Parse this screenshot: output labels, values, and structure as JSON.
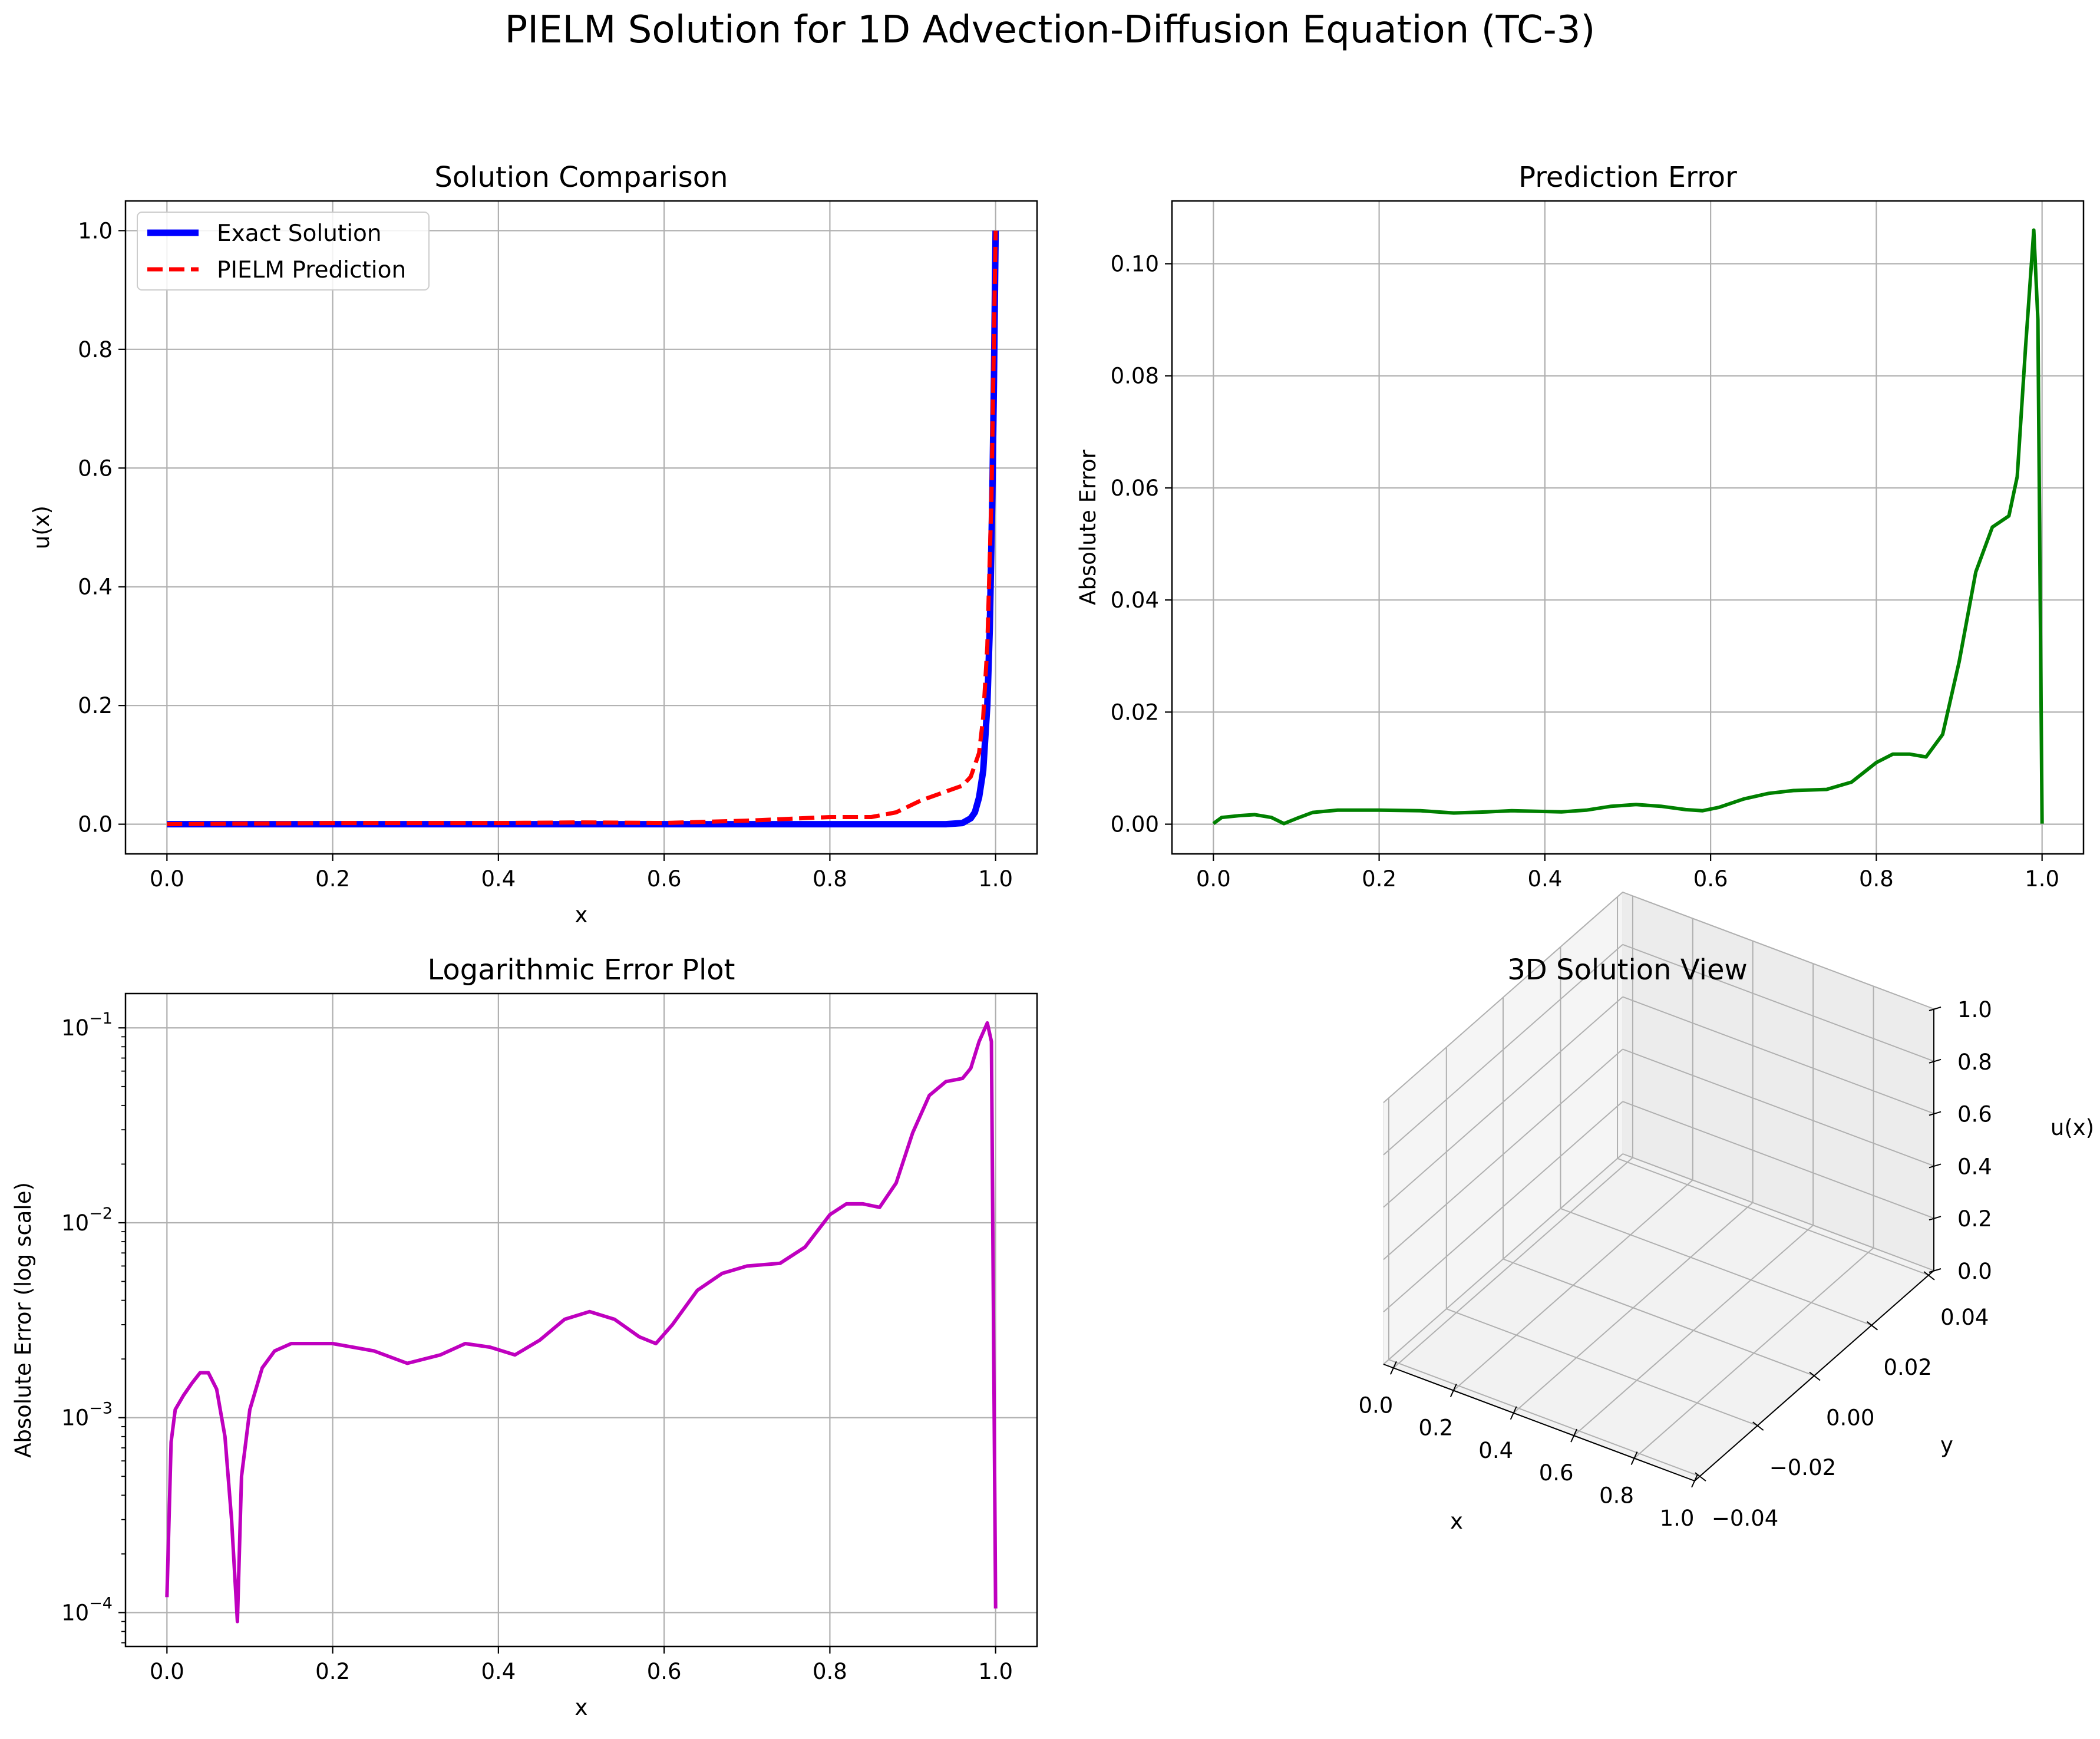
{
  "figure": {
    "suptitle": "PIELM Solution for 1D Advection-Diffusion Equation (TC-3)"
  },
  "chart_data": [
    {
      "type": "line",
      "title": "Solution Comparison",
      "xlabel": "x",
      "ylabel": "u(x)",
      "xlim": [
        -0.05,
        1.05
      ],
      "ylim": [
        -0.05,
        1.05
      ],
      "xticks": [
        0.0,
        0.2,
        0.4,
        0.6,
        0.8,
        1.0
      ],
      "yticks": [
        0.0,
        0.2,
        0.4,
        0.6,
        0.8,
        1.0
      ],
      "xtick_labels": [
        "0.0",
        "0.2",
        "0.4",
        "0.6",
        "0.8",
        "1.0"
      ],
      "ytick_labels": [
        "0.0",
        "0.2",
        "0.4",
        "0.6",
        "0.8",
        "1.0"
      ],
      "grid": true,
      "legend_position": "top-left",
      "series": [
        {
          "name": "Exact Solution",
          "color": "#0000ff",
          "style": "solid",
          "x": [
            0.0,
            0.1,
            0.2,
            0.3,
            0.4,
            0.5,
            0.6,
            0.7,
            0.8,
            0.9,
            0.94,
            0.96,
            0.97,
            0.975,
            0.98,
            0.985,
            0.99,
            0.993,
            0.996,
            0.998,
            1.0
          ],
          "y": [
            0.0,
            0.0,
            0.0,
            0.0,
            0.0,
            0.0,
            0.0,
            0.0,
            0.0,
            0.0,
            0.0,
            0.002,
            0.01,
            0.02,
            0.045,
            0.09,
            0.2,
            0.33,
            0.55,
            0.75,
            1.0
          ]
        },
        {
          "name": "PIELM Prediction",
          "color": "#ff0000",
          "style": "dashed",
          "x": [
            0.0,
            0.1,
            0.2,
            0.3,
            0.4,
            0.5,
            0.6,
            0.7,
            0.8,
            0.85,
            0.88,
            0.91,
            0.94,
            0.96,
            0.97,
            0.98,
            0.985,
            0.99,
            0.995,
            1.0
          ],
          "y": [
            0.0,
            0.001,
            0.002,
            0.002,
            0.002,
            0.003,
            0.002,
            0.006,
            0.012,
            0.012,
            0.02,
            0.04,
            0.055,
            0.065,
            0.08,
            0.12,
            0.18,
            0.3,
            0.55,
            1.0
          ]
        }
      ]
    },
    {
      "type": "line",
      "title": "Prediction Error",
      "xlabel": "x",
      "ylabel": "Absolute Error",
      "xlim": [
        -0.05,
        1.05
      ],
      "ylim": [
        -0.0053,
        0.1112
      ],
      "xticks": [
        0.0,
        0.2,
        0.4,
        0.6,
        0.8,
        1.0
      ],
      "yticks": [
        0.0,
        0.02,
        0.04,
        0.06,
        0.08,
        0.1
      ],
      "xtick_labels": [
        "0.0",
        "0.2",
        "0.4",
        "0.6",
        "0.8",
        "1.0"
      ],
      "ytick_labels": [
        "0.00",
        "0.02",
        "0.04",
        "0.06",
        "0.08",
        "0.10"
      ],
      "grid": true,
      "series": [
        {
          "color": "#008000",
          "x": [
            0.0,
            0.01,
            0.03,
            0.05,
            0.07,
            0.085,
            0.1,
            0.12,
            0.15,
            0.2,
            0.25,
            0.29,
            0.33,
            0.36,
            0.39,
            0.42,
            0.45,
            0.48,
            0.51,
            0.54,
            0.57,
            0.59,
            0.61,
            0.64,
            0.67,
            0.7,
            0.74,
            0.77,
            0.8,
            0.82,
            0.84,
            0.86,
            0.88,
            0.9,
            0.92,
            0.94,
            0.96,
            0.97,
            0.98,
            0.99,
            0.995,
            1.0
          ],
          "y": [
            0.0001,
            0.0012,
            0.0015,
            0.0017,
            0.0012,
            0.0001,
            0.001,
            0.0021,
            0.0025,
            0.0025,
            0.0024,
            0.002,
            0.0022,
            0.0024,
            0.0023,
            0.0022,
            0.0025,
            0.0032,
            0.0035,
            0.0032,
            0.0026,
            0.0024,
            0.003,
            0.0045,
            0.0055,
            0.006,
            0.0062,
            0.0075,
            0.011,
            0.0125,
            0.0125,
            0.012,
            0.016,
            0.029,
            0.045,
            0.053,
            0.055,
            0.062,
            0.085,
            0.106,
            0.09,
            0.0001
          ]
        }
      ]
    },
    {
      "type": "line",
      "title": "Logarithmic Error Plot",
      "xlabel": "x",
      "ylabel": "Absolute Error (log scale)",
      "log_y": true,
      "xlim": [
        -0.05,
        1.05
      ],
      "ylim": [
        6.7e-05,
        0.15
      ],
      "xticks": [
        0.0,
        0.2,
        0.4,
        0.6,
        0.8,
        1.0
      ],
      "xtick_labels": [
        "0.0",
        "0.2",
        "0.4",
        "0.6",
        "0.8",
        "1.0"
      ],
      "yticks": [
        0.0001,
        0.001,
        0.01,
        0.1
      ],
      "ytick_labels": [
        {
          "base": "10",
          "exp": "−4"
        },
        {
          "base": "10",
          "exp": "−3"
        },
        {
          "base": "10",
          "exp": "−2"
        },
        {
          "base": "10",
          "exp": "−1"
        }
      ],
      "grid": true,
      "series": [
        {
          "color": "#bf00bf",
          "x": [
            0.0,
            0.005,
            0.01,
            0.02,
            0.03,
            0.04,
            0.05,
            0.06,
            0.07,
            0.078,
            0.085,
            0.09,
            0.1,
            0.115,
            0.13,
            0.15,
            0.2,
            0.25,
            0.29,
            0.33,
            0.36,
            0.39,
            0.42,
            0.45,
            0.48,
            0.51,
            0.54,
            0.57,
            0.59,
            0.61,
            0.64,
            0.67,
            0.7,
            0.74,
            0.77,
            0.8,
            0.82,
            0.84,
            0.86,
            0.88,
            0.9,
            0.92,
            0.94,
            0.96,
            0.97,
            0.98,
            0.99,
            0.995,
            1.0
          ],
          "y": [
            0.00012,
            0.00075,
            0.0011,
            0.0013,
            0.0015,
            0.0017,
            0.0017,
            0.0014,
            0.0008,
            0.0003,
            9e-05,
            0.0005,
            0.0011,
            0.0018,
            0.0022,
            0.0024,
            0.0024,
            0.0022,
            0.0019,
            0.0021,
            0.0024,
            0.0023,
            0.0021,
            0.0025,
            0.0032,
            0.0035,
            0.0032,
            0.0026,
            0.0024,
            0.003,
            0.0045,
            0.0055,
            0.006,
            0.0062,
            0.0075,
            0.011,
            0.0125,
            0.0125,
            0.012,
            0.016,
            0.029,
            0.045,
            0.053,
            0.055,
            0.062,
            0.085,
            0.106,
            0.085,
            0.000105
          ]
        }
      ]
    },
    {
      "type": "3d",
      "title": "3D Solution View",
      "xlabel": "x",
      "ylabel": "y",
      "zlabel": "u(x)",
      "xtick_labels": [
        "0.0",
        "0.2",
        "0.4",
        "0.6",
        "0.8",
        "1.0"
      ],
      "ytick_labels": [
        "−0.04",
        "−0.02",
        "0.00",
        "0.02",
        "0.04"
      ],
      "ztick_labels": [
        "0.0",
        "0.2",
        "0.4",
        "0.6",
        "0.8",
        "1.0"
      ],
      "grid": true
    }
  ]
}
